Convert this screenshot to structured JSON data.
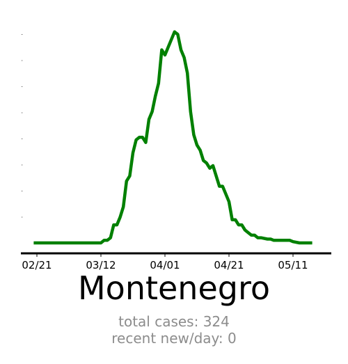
{
  "title": "Montenegro",
  "stats": {
    "total_cases": "total cases: 324",
    "recent_new_per_day": "recent new/day: 0"
  },
  "colors": {
    "line": "#008000",
    "axis": "#000000",
    "stats_text": "#8c8c8c"
  },
  "chart_data": {
    "type": "line",
    "title": "Montenegro",
    "xlabel": "",
    "ylabel": "",
    "x_tick_labels": [
      "02/21",
      "03/12",
      "04/01",
      "04/21",
      "05/11"
    ],
    "x_tick_dates": [
      "2020-02-21",
      "2020-03-12",
      "2020-04-01",
      "2020-04-21",
      "2020-05-11"
    ],
    "y_tick_labels_visible": false,
    "grid": false,
    "ylim": [
      0,
      8.5
    ],
    "series": [
      {
        "color": "#008000",
        "points": [
          [
            "2020-02-20",
            0.0
          ],
          [
            "2020-03-06",
            0.0
          ],
          [
            "2020-03-10",
            0.0
          ],
          [
            "2020-03-12",
            0.0
          ],
          [
            "2020-03-13",
            0.1
          ],
          [
            "2020-03-14",
            0.1
          ],
          [
            "2020-03-15",
            0.2
          ],
          [
            "2020-03-16",
            0.7
          ],
          [
            "2020-03-17",
            0.7
          ],
          [
            "2020-03-18",
            1.0
          ],
          [
            "2020-03-19",
            1.4
          ],
          [
            "2020-03-20",
            2.4
          ],
          [
            "2020-03-21",
            2.6
          ],
          [
            "2020-03-22",
            3.5
          ],
          [
            "2020-03-23",
            4.0
          ],
          [
            "2020-03-24",
            4.1
          ],
          [
            "2020-03-25",
            4.1
          ],
          [
            "2020-03-26",
            3.9
          ],
          [
            "2020-03-27",
            4.8
          ],
          [
            "2020-03-28",
            5.1
          ],
          [
            "2020-03-29",
            5.7
          ],
          [
            "2020-03-30",
            6.2
          ],
          [
            "2020-03-31",
            7.5
          ],
          [
            "2020-04-01",
            7.3
          ],
          [
            "2020-04-02",
            7.6
          ],
          [
            "2020-04-03",
            7.9
          ],
          [
            "2020-04-04",
            8.2
          ],
          [
            "2020-04-05",
            8.1
          ],
          [
            "2020-04-06",
            7.5
          ],
          [
            "2020-04-07",
            7.2
          ],
          [
            "2020-04-08",
            6.6
          ],
          [
            "2020-04-09",
            5.1
          ],
          [
            "2020-04-10",
            4.2
          ],
          [
            "2020-04-11",
            3.8
          ],
          [
            "2020-04-12",
            3.6
          ],
          [
            "2020-04-13",
            3.2
          ],
          [
            "2020-04-14",
            3.1
          ],
          [
            "2020-04-15",
            2.9
          ],
          [
            "2020-04-16",
            3.0
          ],
          [
            "2020-04-17",
            2.6
          ],
          [
            "2020-04-18",
            2.2
          ],
          [
            "2020-04-19",
            2.2
          ],
          [
            "2020-04-20",
            1.9
          ],
          [
            "2020-04-21",
            1.6
          ],
          [
            "2020-04-22",
            0.9
          ],
          [
            "2020-04-23",
            0.9
          ],
          [
            "2020-04-24",
            0.7
          ],
          [
            "2020-04-25",
            0.7
          ],
          [
            "2020-04-26",
            0.5
          ],
          [
            "2020-04-27",
            0.4
          ],
          [
            "2020-04-28",
            0.3
          ],
          [
            "2020-04-29",
            0.3
          ],
          [
            "2020-04-30",
            0.2
          ],
          [
            "2020-05-01",
            0.2
          ],
          [
            "2020-05-03",
            0.15
          ],
          [
            "2020-05-04",
            0.15
          ],
          [
            "2020-05-05",
            0.1
          ],
          [
            "2020-05-10",
            0.1
          ],
          [
            "2020-05-11",
            0.05
          ],
          [
            "2020-05-13",
            0.0
          ],
          [
            "2020-05-17",
            0.0
          ]
        ]
      }
    ]
  }
}
